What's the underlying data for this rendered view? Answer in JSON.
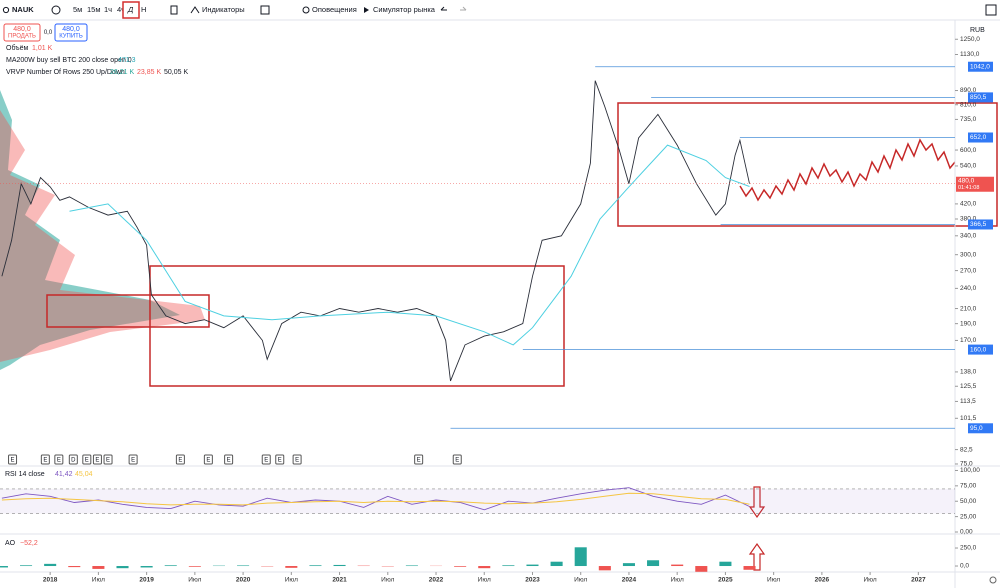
{
  "toolbar": {
    "symbol": "NAUK",
    "intervals": [
      "5м",
      "15м",
      "1ч",
      "4ч",
      "Д",
      "Н"
    ],
    "indicators": "Индикаторы",
    "alerts": "Оповещения",
    "replay": "Симулятор рынка"
  },
  "trade": {
    "sell_price": "480,0",
    "sell": "ПРОДАТЬ",
    "spread": "0,0",
    "buy_price": "480,0",
    "buy": "КУПИТЬ"
  },
  "legend": {
    "volume": "Объём",
    "volume_value": "1,01 K",
    "ma": "MA200W buy sell BTC 200 close open 0",
    "ma_value": "471,3",
    "vrvp": "VRVP Number Of Rows 250 Up/Down",
    "vrvp_up": "26,21 K",
    "vrvp_down": "23,85 K",
    "vrvp_total": "50,05 K"
  },
  "currency": "RUB",
  "chart_data": [
    {
      "type": "line",
      "log_scale": true,
      "xlim": [
        2017.48,
        2027.38
      ],
      "ylim": [
        74,
        1420
      ],
      "xticks": [
        2018,
        {
          "value": 2018.5,
          "label": "Июл"
        },
        2019,
        {
          "value": 2019.5,
          "label": "Июл"
        },
        2020,
        {
          "value": 2020.5,
          "label": "Июл"
        },
        2021,
        {
          "value": 2021.5,
          "label": "Июл"
        },
        2022,
        {
          "value": 2022.5,
          "label": "Июл"
        },
        2023,
        {
          "value": 2023.5,
          "label": "Июл"
        },
        2024,
        {
          "value": 2024.5,
          "label": "Июл"
        },
        2025,
        {
          "value": 2025.5,
          "label": "Июл"
        },
        2026,
        {
          "value": 2026.5,
          "label": "Июл"
        },
        2027
      ],
      "yticks": [
        {
          "value": 1250,
          "label": "1250,0"
        },
        {
          "value": 1130,
          "label": "1130,0"
        },
        {
          "value": 890,
          "label": "890,0"
        },
        {
          "value": 810,
          "label": "810,0"
        },
        {
          "value": 735,
          "label": "735,0"
        },
        {
          "value": 600,
          "label": "600,0"
        },
        {
          "value": 540,
          "label": "540,0"
        },
        {
          "value": 420,
          "label": "420,0"
        },
        {
          "value": 380,
          "label": "380,0"
        },
        {
          "value": 340,
          "label": "340,0"
        },
        {
          "value": 300,
          "label": "300,0"
        },
        {
          "value": 270,
          "label": "270,0"
        },
        {
          "value": 240,
          "label": "240,0"
        },
        {
          "value": 210,
          "label": "210,0"
        },
        {
          "value": 190,
          "label": "190,0"
        },
        {
          "value": 170,
          "label": "170,0"
        },
        {
          "value": 138,
          "label": "138,0"
        },
        {
          "value": 125.5,
          "label": "125,5"
        },
        {
          "value": 113.5,
          "label": "113,5"
        },
        {
          "value": 101.5,
          "label": "101,5"
        },
        {
          "value": 82.5,
          "label": "82,5"
        },
        {
          "value": 75,
          "label": "75,0"
        }
      ],
      "series": [
        {
          "color": "#2a2e39",
          "x": [
            2017.5,
            2017.6,
            2017.7,
            2017.8,
            2017.9,
            2018.0,
            2018.1,
            2018.2,
            2018.4,
            2018.6,
            2018.8,
            2018.9,
            2019.0,
            2019.05,
            2019.2,
            2019.4,
            2019.6,
            2019.8,
            2020.0,
            2020.2,
            2020.25,
            2020.4,
            2020.6,
            2020.8,
            2021.0,
            2021.2,
            2021.4,
            2021.6,
            2021.8,
            2022.0,
            2022.1,
            2022.15,
            2022.3,
            2022.5,
            2022.7,
            2022.9,
            2023.0,
            2023.1,
            2023.3,
            2023.5,
            2023.6,
            2023.65,
            2023.75,
            2023.9,
            2024.0,
            2024.1,
            2024.3,
            2024.5,
            2024.7,
            2024.9,
            2025.0,
            2025.1,
            2025.15,
            2025.25
          ],
          "values": [
            260,
            330,
            480,
            420,
            500,
            470,
            430,
            440,
            410,
            390,
            400,
            360,
            320,
            230,
            200,
            190,
            195,
            185,
            200,
            170,
            150,
            190,
            205,
            200,
            210,
            205,
            210,
            205,
            210,
            200,
            170,
            130,
            165,
            175,
            180,
            190,
            260,
            330,
            340,
            420,
            550,
            950,
            800,
            600,
            480,
            650,
            760,
            620,
            480,
            390,
            420,
            580,
            640,
            480
          ]
        },
        {
          "color": "#4dd0e1",
          "x": [
            2018.2,
            2018.6,
            2019.0,
            2019.4,
            2019.8,
            2020.3,
            2020.8,
            2021.5,
            2022.0,
            2022.5,
            2022.8,
            2023.0,
            2023.4,
            2023.7,
            2024.0,
            2024.4,
            2024.8,
            2025.0,
            2025.25
          ],
          "values": [
            400,
            420,
            330,
            220,
            200,
            195,
            200,
            205,
            200,
            180,
            165,
            185,
            260,
            380,
            470,
            620,
            560,
            500,
            471.3
          ]
        }
      ],
      "levels": [
        {
          "value": 1042,
          "label": "1042,0",
          "start": 2023.65
        },
        {
          "value": 850.5,
          "label": "850,5",
          "start": 2024.23
        },
        {
          "value": 652,
          "label": "652,0",
          "start": 2025.15
        },
        {
          "value": 366.5,
          "label": "366,5",
          "start": 2024.95
        },
        {
          "value": 160,
          "label": "160,0",
          "start": 2022.9
        },
        {
          "value": 95,
          "label": "95,0",
          "start": 2022.15
        }
      ],
      "last_price": {
        "value": 480,
        "label": "480,0",
        "countdown": "01:41:08"
      },
      "events": {
        "x": [
          2017.61,
          2017.95,
          2018.09,
          2018.24,
          2018.38,
          2018.49,
          2018.6,
          2018.86,
          2019.35,
          2019.64,
          2019.85,
          2020.24,
          2020.38,
          2020.56,
          2021.82,
          2022.22
        ],
        "labels": [
          "E",
          "E",
          "E",
          "D",
          "E",
          "E",
          "E",
          "E",
          "E",
          "E",
          "E",
          "E",
          "E",
          "E",
          "E",
          "E"
        ]
      }
    },
    {
      "type": "line",
      "title": "RSI 14 close",
      "legend_values": [
        "41,42",
        "45,04"
      ],
      "xlim": [
        2017.48,
        2027.38
      ],
      "ylim": [
        0,
        104
      ],
      "band": [
        30,
        70
      ],
      "yticks": [
        {
          "value": 100,
          "label": "100,00"
        },
        {
          "value": 75,
          "label": "75,00"
        },
        {
          "value": 50,
          "label": "50,00"
        },
        {
          "value": 25,
          "label": "25,00"
        },
        {
          "value": 0,
          "label": "0,00"
        }
      ],
      "x": [
        2017.5,
        2017.75,
        2018,
        2018.25,
        2018.5,
        2018.75,
        2019,
        2019.25,
        2019.5,
        2019.75,
        2020,
        2020.25,
        2020.5,
        2020.75,
        2021,
        2021.25,
        2021.5,
        2021.75,
        2022,
        2022.25,
        2022.5,
        2022.75,
        2023,
        2023.25,
        2023.5,
        2023.75,
        2024,
        2024.25,
        2024.5,
        2024.75,
        2025,
        2025.25
      ],
      "series": [
        {
          "color": "#7e57c2",
          "values": [
            55,
            62,
            58,
            48,
            52,
            45,
            40,
            38,
            50,
            44,
            42,
            55,
            48,
            52,
            50,
            40,
            58,
            45,
            52,
            48,
            36,
            50,
            47,
            55,
            62,
            68,
            72,
            58,
            50,
            45,
            60,
            41.42
          ]
        },
        {
          "color": "#f5c542",
          "values": [
            52,
            54,
            55,
            53,
            51,
            49,
            46,
            44,
            45,
            45,
            44,
            47,
            48,
            49,
            50,
            48,
            50,
            49,
            50,
            49,
            47,
            46,
            47,
            49,
            53,
            58,
            63,
            62,
            58,
            54,
            53,
            45.04
          ]
        }
      ]
    },
    {
      "type": "bar",
      "title": "AO",
      "legend_value": "−52,2",
      "xlim": [
        2017.48,
        2027.38
      ],
      "ylim": [
        -83,
        403
      ],
      "yticks": [
        {
          "value": 250,
          "label": "250,0"
        },
        {
          "value": 0,
          "label": "0,0"
        }
      ],
      "colors": {
        "up": "#26a69a",
        "down": "#ef5350"
      },
      "x": [
        2017.5,
        2017.75,
        2018,
        2018.25,
        2018.5,
        2018.75,
        2019,
        2019.25,
        2019.5,
        2019.75,
        2020,
        2020.25,
        2020.5,
        2020.75,
        2021,
        2021.25,
        2021.5,
        2021.75,
        2022,
        2022.25,
        2022.5,
        2022.75,
        2023,
        2023.25,
        2023.5,
        2023.75,
        2024,
        2024.25,
        2024.5,
        2024.75,
        2025,
        2025.25
      ],
      "values": [
        -20,
        10,
        30,
        -15,
        -40,
        -30,
        -20,
        10,
        -10,
        5,
        8,
        -5,
        -25,
        10,
        15,
        5,
        -5,
        8,
        3,
        -10,
        -30,
        10,
        20,
        60,
        260,
        -60,
        40,
        80,
        20,
        -80,
        60,
        -52.2
      ]
    }
  ]
}
